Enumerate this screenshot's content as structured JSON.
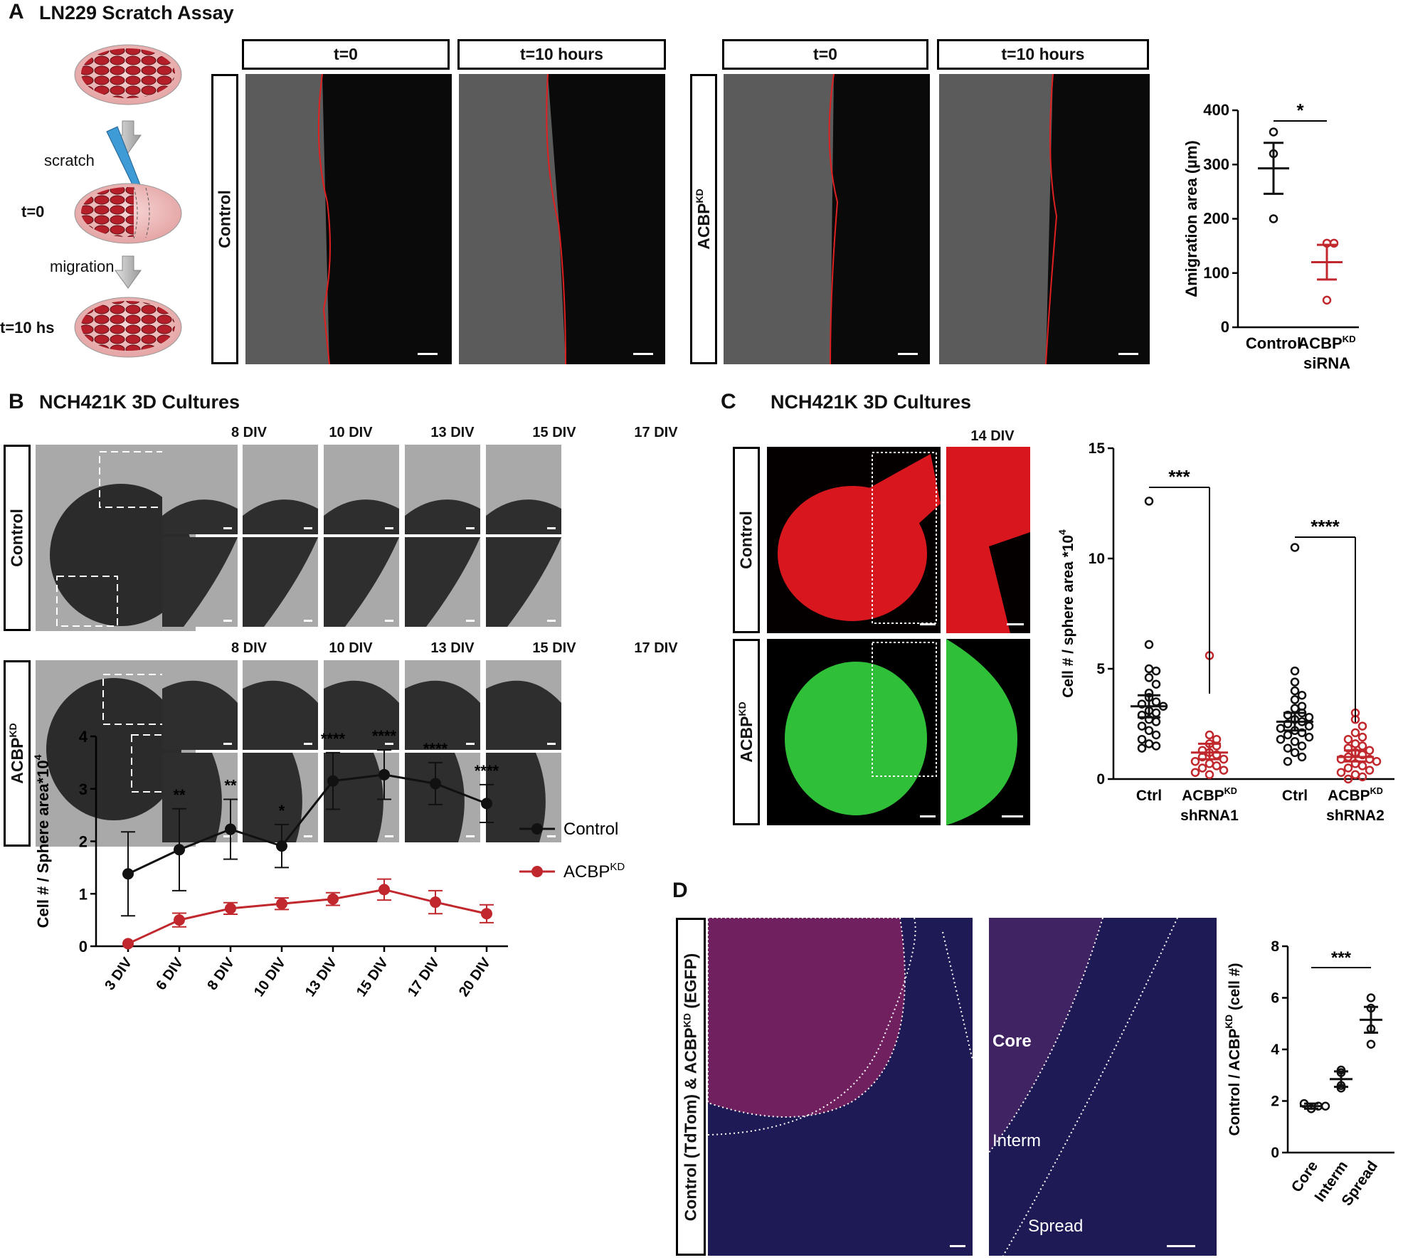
{
  "panelA": {
    "letter": "A",
    "title": "LN229 Scratch Assay",
    "schematic": {
      "scratch": "scratch",
      "t0": "t=0",
      "migration": "migration",
      "t10": "t=10 hs"
    },
    "col_headers": [
      "t=0",
      "t=10 hours",
      "t=0",
      "t=10 hours"
    ],
    "row_labels": [
      "Control",
      "ACBP"
    ],
    "row_label_sup": "KD"
  },
  "panelB": {
    "letter": "B",
    "title": "NCH421K 3D Cultures",
    "row_labels": [
      "Control",
      "ACBP"
    ],
    "row_label_sup": "KD",
    "time_labels": [
      "8 DIV",
      "10 DIV",
      "13 DIV",
      "15 DIV",
      "17 DIV"
    ]
  },
  "panelC": {
    "letter": "C",
    "title": "NCH421K 3D Cultures",
    "time_label": "14 DIV",
    "row_labels": [
      "Control",
      "ACBP"
    ],
    "row_label_sup": "KD"
  },
  "panelD": {
    "letter": "D",
    "side_label_a": "Control (TdTom) & ACBP",
    "side_label_sup": "KD",
    "side_label_b": " (EGFP)",
    "regions": [
      "Core",
      "Interm",
      "Spread"
    ]
  },
  "colors": {
    "control": "#111111",
    "acbp": "#c0282d",
    "red_fluor": "#e8141c",
    "green_fluor": "#2fd23a",
    "tissue": "#1b1750"
  },
  "chart_data": [
    {
      "id": "A-migration",
      "type": "scatter",
      "ylabel": "Δmigration area (µm)",
      "ylim": [
        0,
        400
      ],
      "yticks": [
        0,
        100,
        200,
        300,
        400
      ],
      "categories": [
        {
          "name": "Control",
          "name_line2": "",
          "color": "#111111",
          "points": [
            360,
            200,
            320
          ],
          "mean": 293,
          "sem_low": 246,
          "sem_high": 340
        },
        {
          "name": "ACBP",
          "sup": "KD",
          "name_line2": "siRNA",
          "color": "#c0282d",
          "points": [
            155,
            155,
            50
          ],
          "mean": 120,
          "sem_low": 88,
          "sem_high": 152
        }
      ],
      "significance": [
        {
          "between": [
            0,
            1
          ],
          "label": "*"
        }
      ]
    },
    {
      "id": "C-cell-per-sphere",
      "type": "scatter",
      "ylabel": "Cell # / sphere area *10",
      "ylabel_sup": "4",
      "ylim": [
        0,
        15
      ],
      "yticks": [
        0,
        5,
        10,
        15
      ],
      "categories": [
        {
          "name": "Ctrl",
          "name_line2": "",
          "color": "#111111",
          "mean": 3.3,
          "sem_low": 2.8,
          "sem_high": 3.8,
          "points": [
            12.6,
            6.1,
            5.0,
            4.9,
            4.6,
            4.3,
            3.9,
            3.7,
            3.5,
            3.4,
            3.3,
            3.1,
            3.0,
            2.9,
            2.7,
            2.6,
            2.4,
            2.2,
            2.0,
            1.8,
            1.6,
            1.5,
            1.4
          ]
        },
        {
          "name": "ACBP",
          "sup": "KD",
          "name_line2": "shRNA1",
          "color": "#c0282d",
          "mean": 1.2,
          "sem_low": 0.9,
          "sem_high": 1.6,
          "points": [
            5.6,
            2.0,
            1.8,
            1.6,
            1.5,
            1.3,
            1.2,
            1.1,
            1.0,
            0.9,
            0.8,
            0.7,
            0.6,
            0.5,
            0.4,
            0.3,
            0.2
          ]
        },
        {
          "name": "Ctrl",
          "name_line2": "",
          "color": "#111111",
          "mean": 2.6,
          "sem_low": 2.2,
          "sem_high": 3.0,
          "points": [
            10.5,
            4.9,
            4.4,
            4.0,
            3.8,
            3.6,
            3.3,
            3.2,
            3.0,
            2.9,
            2.8,
            2.7,
            2.6,
            2.5,
            2.4,
            2.3,
            2.2,
            2.1,
            2.0,
            1.9,
            1.8,
            1.7,
            1.5,
            1.4,
            1.2,
            1.0,
            0.8
          ]
        },
        {
          "name": "ACBP",
          "sup": "KD",
          "name_line2": "shRNA2",
          "color": "#c0282d",
          "mean": 1.0,
          "sem_low": 0.8,
          "sem_high": 1.3,
          "points": [
            3.0,
            2.7,
            2.4,
            2.1,
            1.9,
            1.8,
            1.6,
            1.5,
            1.4,
            1.3,
            1.2,
            1.1,
            1.0,
            0.9,
            0.9,
            0.8,
            0.7,
            0.6,
            0.5,
            0.4,
            0.3,
            0.2,
            0.1,
            0.0
          ]
        }
      ],
      "significance": [
        {
          "between": [
            0,
            1
          ],
          "label": "***"
        },
        {
          "between": [
            2,
            3
          ],
          "label": "****"
        }
      ]
    },
    {
      "id": "B-time-course",
      "type": "line",
      "ylabel": "Cell # / Sphere area*10",
      "ylabel_sup": "4",
      "ylim": [
        0,
        4
      ],
      "yticks": [
        0,
        1,
        2,
        3,
        4
      ],
      "x": [
        "3 DIV",
        "6 DIV",
        "8 DIV",
        "10 DIV",
        "13 DIV",
        "15 DIV",
        "17 DIV",
        "20 DIV"
      ],
      "series": [
        {
          "name": "Control",
          "color": "#111111",
          "values": [
            1.38,
            1.84,
            2.23,
            1.91,
            3.15,
            3.27,
            3.1,
            2.72
          ],
          "err": [
            0.8,
            0.78,
            0.57,
            0.41,
            0.54,
            0.47,
            0.4,
            0.36
          ]
        },
        {
          "name": "ACBP",
          "sup": "KD",
          "color": "#c0282d",
          "values": [
            0.05,
            0.5,
            0.72,
            0.81,
            0.9,
            1.08,
            0.84,
            0.62
          ],
          "err": [
            0.0,
            0.13,
            0.11,
            0.11,
            0.12,
            0.2,
            0.22,
            0.17
          ]
        }
      ],
      "significance": [
        "",
        "**",
        "**",
        "*",
        "****",
        "****",
        "****",
        "****"
      ]
    },
    {
      "id": "D-ratio",
      "type": "scatter",
      "ylabel": "Control / ACBP",
      "ylabel_sup": "KD",
      "ylabel_tail": " (cell #)",
      "ylim": [
        0,
        8
      ],
      "yticks": [
        0,
        2,
        4,
        6,
        8
      ],
      "categories": [
        {
          "name": "Core",
          "name_line2": "",
          "color": "#111111",
          "points": [
            1.7,
            1.8,
            1.9,
            1.8
          ],
          "mean": 1.8,
          "sem_low": 1.7,
          "sem_high": 1.9
        },
        {
          "name": "Interm",
          "name_line2": "",
          "color": "#111111",
          "points": [
            3.2,
            3.1,
            2.5,
            2.6
          ],
          "mean": 2.85,
          "sem_low": 2.55,
          "sem_high": 3.15
        },
        {
          "name": "Spread",
          "name_line2": "",
          "color": "#111111",
          "points": [
            6.0,
            5.6,
            4.8,
            4.2
          ],
          "mean": 5.15,
          "sem_low": 4.65,
          "sem_high": 5.65
        }
      ],
      "significance": [
        {
          "between": [
            0,
            2
          ],
          "label": "***"
        }
      ]
    }
  ]
}
